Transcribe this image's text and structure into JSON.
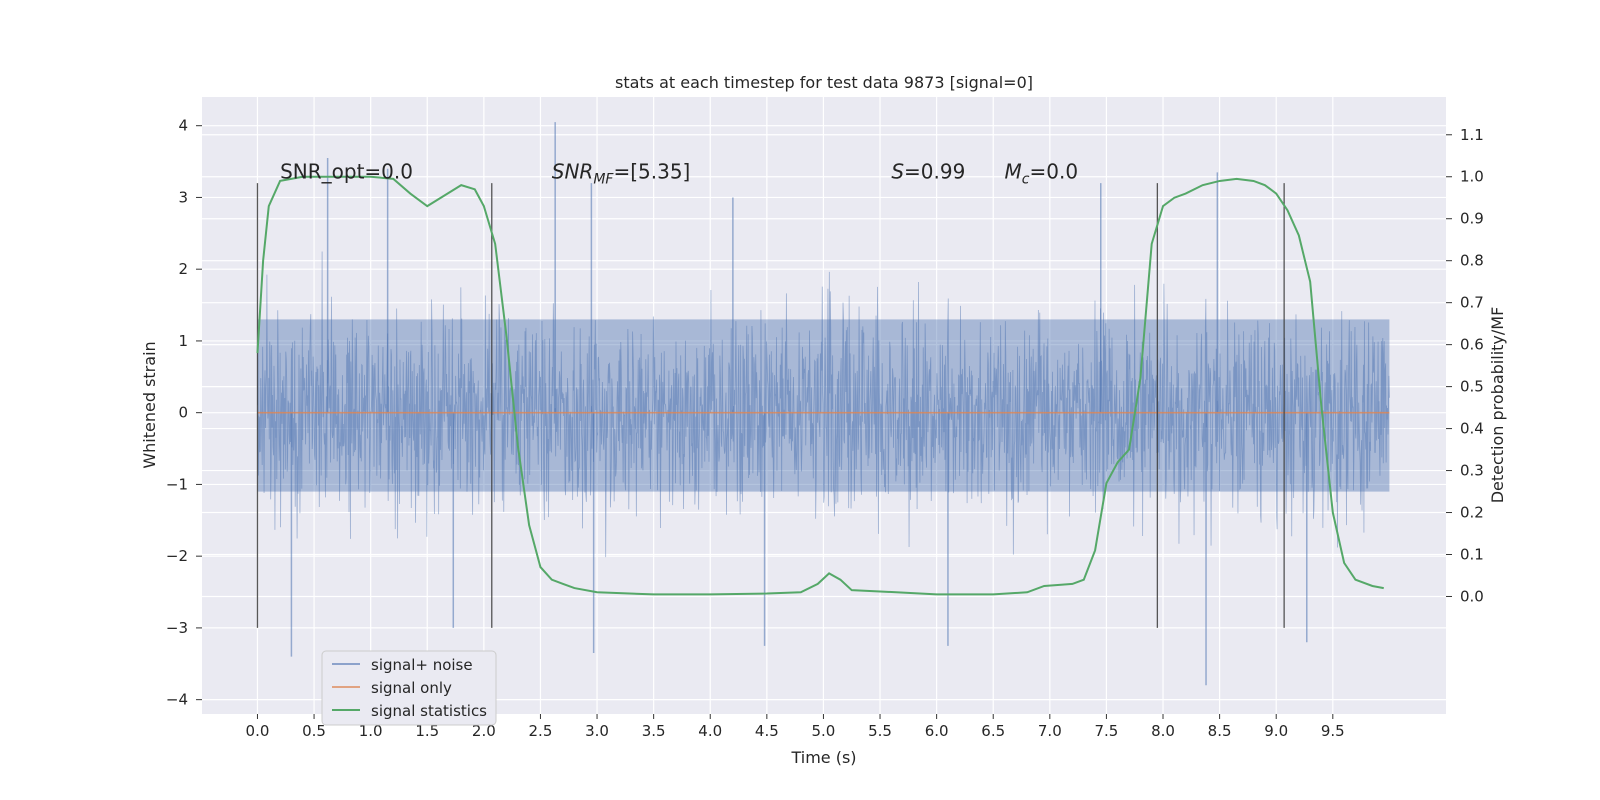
{
  "chart_data": {
    "type": "line",
    "title": "stats at each timestep for test data 9873 [signal=0]",
    "xlabel": "Time (s)",
    "ylabel": "Whitened strain",
    "y2label": "Detection probability/MF",
    "xlim": [
      -0.49,
      10.5
    ],
    "ylim": [
      -4.2,
      4.4
    ],
    "y2lim": [
      -0.28,
      1.19
    ],
    "xticks": [
      0.0,
      0.5,
      1.0,
      1.5,
      2.0,
      2.5,
      3.0,
      3.5,
      4.0,
      4.5,
      5.0,
      5.5,
      6.0,
      6.5,
      7.0,
      7.5,
      8.0,
      8.5,
      9.0,
      9.5
    ],
    "xtick_labels": [
      "0.0",
      "0.5",
      "1.0",
      "1.5",
      "2.0",
      "2.5",
      "3.0",
      "3.5",
      "4.0",
      "4.5",
      "5.0",
      "5.5",
      "6.0",
      "6.5",
      "7.0",
      "7.5",
      "8.0",
      "8.5",
      "9.0",
      "9.5"
    ],
    "yticks": [
      -4,
      -3,
      -2,
      -1,
      0,
      1,
      2,
      3,
      4
    ],
    "ytick_labels": [
      "−4",
      "−3",
      "−2",
      "−1",
      "0",
      "1",
      "2",
      "3",
      "4"
    ],
    "y2ticks": [
      0.0,
      0.1,
      0.2,
      0.3,
      0.4,
      0.5,
      0.6,
      0.7,
      0.8,
      0.9,
      1.0,
      1.1
    ],
    "y2tick_labels": [
      "0.0",
      "0.1",
      "0.2",
      "0.3",
      "0.4",
      "0.5",
      "0.6",
      "0.7",
      "0.8",
      "0.9",
      "1.0",
      "1.1"
    ],
    "grid": true,
    "legend_position": "lower-left",
    "annotations": [
      {
        "text": "SNR_opt=0.0",
        "x": 0.2,
        "y2": 1.0
      },
      {
        "text": "SNR_MF=[5.35]",
        "x": 2.6,
        "y2": 1.0
      },
      {
        "text": "S=0.99",
        "x": 5.6,
        "y2": 1.0
      },
      {
        "text": "M_c=0.0",
        "x": 6.6,
        "y2": 1.0
      }
    ],
    "vertical_markers": {
      "x": [
        0.0,
        2.07,
        7.95,
        9.07
      ],
      "y_range": [
        -3.0,
        3.2
      ]
    },
    "series": [
      {
        "name": "signal+ noise",
        "color": "#4c72b0",
        "opacity": 0.5,
        "axis": "left",
        "style": "dense-noise",
        "x_range": [
          0.0,
          10.0
        ],
        "envelope": {
          "typical_low": -1.1,
          "typical_high": 1.3,
          "max": 4.05,
          "min": -3.8
        },
        "spikes": [
          {
            "x": 2.63,
            "y": 4.05
          },
          {
            "x": 0.62,
            "y": 3.55
          },
          {
            "x": 8.48,
            "y": 3.35
          },
          {
            "x": 1.15,
            "y": 3.4
          },
          {
            "x": 7.45,
            "y": 3.2
          },
          {
            "x": 2.95,
            "y": 3.2
          },
          {
            "x": 8.38,
            "y": -3.8
          },
          {
            "x": 0.3,
            "y": -3.4
          },
          {
            "x": 2.97,
            "y": -3.35
          },
          {
            "x": 4.48,
            "y": -3.25
          },
          {
            "x": 6.1,
            "y": -3.25
          },
          {
            "x": 9.27,
            "y": -3.2
          },
          {
            "x": 1.73,
            "y": -3.0
          },
          {
            "x": 4.2,
            "y": 3.0
          }
        ]
      },
      {
        "name": "signal only",
        "color": "#dd8452",
        "axis": "left",
        "x": [
          0.0,
          10.0
        ],
        "y": [
          0.0,
          0.0
        ]
      },
      {
        "name": "signal statistics",
        "color": "#55a868",
        "axis": "right",
        "x": [
          0.0,
          0.05,
          0.1,
          0.2,
          0.4,
          0.8,
          1.0,
          1.2,
          1.35,
          1.5,
          1.65,
          1.8,
          1.92,
          2.0,
          2.1,
          2.2,
          2.3,
          2.4,
          2.5,
          2.6,
          2.7,
          2.8,
          3.0,
          3.5,
          4.0,
          4.5,
          4.8,
          4.95,
          5.05,
          5.15,
          5.25,
          5.5,
          6.0,
          6.5,
          6.8,
          6.95,
          7.1,
          7.2,
          7.3,
          7.4,
          7.5,
          7.6,
          7.7,
          7.8,
          7.9,
          8.0,
          8.1,
          8.2,
          8.35,
          8.5,
          8.65,
          8.8,
          8.9,
          9.0,
          9.1,
          9.2,
          9.3,
          9.4,
          9.5,
          9.6,
          9.7,
          9.85,
          9.95
        ],
        "y": [
          0.58,
          0.8,
          0.93,
          0.99,
          1.0,
          1.0,
          1.0,
          0.995,
          0.96,
          0.93,
          0.955,
          0.98,
          0.97,
          0.93,
          0.84,
          0.62,
          0.36,
          0.17,
          0.07,
          0.04,
          0.03,
          0.02,
          0.01,
          0.005,
          0.005,
          0.007,
          0.01,
          0.03,
          0.055,
          0.04,
          0.015,
          0.012,
          0.005,
          0.005,
          0.01,
          0.025,
          0.028,
          0.03,
          0.04,
          0.11,
          0.27,
          0.32,
          0.35,
          0.52,
          0.84,
          0.93,
          0.95,
          0.96,
          0.98,
          0.99,
          0.995,
          0.99,
          0.98,
          0.96,
          0.92,
          0.86,
          0.75,
          0.45,
          0.2,
          0.08,
          0.04,
          0.025,
          0.02
        ]
      }
    ]
  }
}
